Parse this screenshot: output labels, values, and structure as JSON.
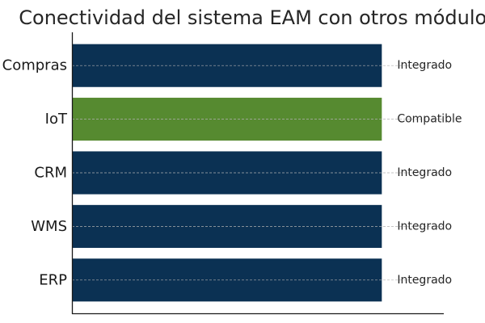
{
  "chart_data": {
    "type": "bar",
    "orientation": "horizontal",
    "title": "Conectividad del sistema EAM con otros módulos",
    "xlabel": "",
    "ylabel": "",
    "categories": [
      "Compras",
      "IoT",
      "CRM",
      "WMS",
      "ERP"
    ],
    "values": [
      1,
      1,
      1,
      1,
      1
    ],
    "xlim": [
      0,
      1.2
    ],
    "value_labels": [
      "Integrado",
      "Compatible",
      "Integrado",
      "Integrado",
      "Integrado"
    ],
    "bar_colors": [
      "#0b3153",
      "#568a30",
      "#0b3153",
      "#0b3153",
      "#0b3153"
    ],
    "grid": "dashed line through each bar center",
    "legend": "none"
  }
}
